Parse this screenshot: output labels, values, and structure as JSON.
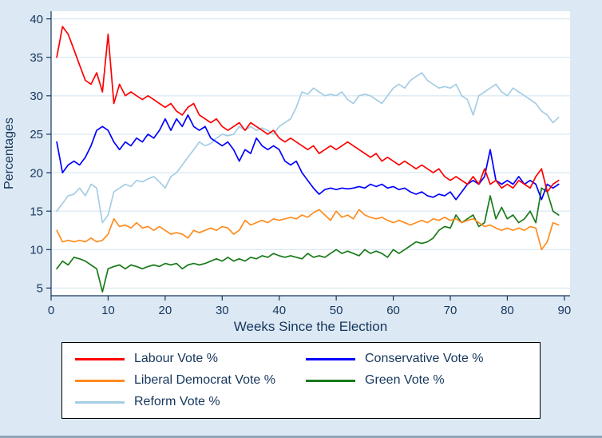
{
  "page": {
    "background_color": "#dce9f4",
    "plot_background_color": "#ffffff",
    "gridline_color": "#cfe3f1",
    "axis_text_color": "#16365c"
  },
  "chart_data": {
    "type": "line",
    "title": "",
    "xlabel": "Weeks Since the Election",
    "ylabel": "Percentages",
    "xlim": [
      0,
      91
    ],
    "ylim": [
      4,
      41
    ],
    "xticks": [
      0,
      10,
      20,
      30,
      40,
      50,
      60,
      70,
      80,
      90
    ],
    "yticks": [
      5,
      10,
      15,
      20,
      25,
      30,
      35,
      40
    ],
    "grid": "horizontal",
    "legend_position": "bottom",
    "x_weeks": [
      1,
      2,
      3,
      4,
      5,
      6,
      7,
      8,
      9,
      10,
      11,
      12,
      13,
      14,
      15,
      16,
      17,
      18,
      19,
      20,
      21,
      22,
      23,
      24,
      25,
      26,
      27,
      28,
      29,
      30,
      31,
      32,
      33,
      34,
      35,
      36,
      37,
      38,
      39,
      40,
      41,
      42,
      43,
      44,
      45,
      46,
      47,
      48,
      49,
      50,
      51,
      52,
      53,
      54,
      55,
      56,
      57,
      58,
      59,
      60,
      61,
      62,
      63,
      64,
      65,
      66,
      67,
      68,
      69,
      70,
      71,
      72,
      73,
      74,
      75,
      76,
      77,
      78,
      79,
      80,
      81,
      82,
      83,
      84,
      85,
      86,
      87,
      88,
      89
    ],
    "series": [
      {
        "name": "Labour Vote %",
        "color": "#fe0000",
        "values": [
          35,
          39,
          38,
          36,
          34,
          32,
          31.5,
          33,
          30.5,
          38,
          29,
          31.5,
          30,
          30.5,
          30,
          29.5,
          30,
          29.5,
          29,
          28.5,
          29,
          28,
          27.5,
          28.5,
          29,
          27.5,
          27,
          26.5,
          27,
          26,
          25.5,
          26,
          26.5,
          25.5,
          26.5,
          26,
          25.5,
          25,
          25.5,
          24.5,
          24,
          24.5,
          24,
          23.5,
          23,
          23.5,
          22.5,
          23,
          23.5,
          23,
          23.5,
          24,
          23.5,
          23,
          22.5,
          22,
          22.5,
          21.5,
          22,
          21.5,
          21,
          21.5,
          21,
          20.5,
          21,
          20.5,
          20,
          20.5,
          19.5,
          19,
          19.5,
          19,
          18.5,
          19.5,
          18.5,
          20.5,
          18.5,
          19,
          18,
          18.5,
          18,
          19,
          18.5,
          18,
          19.5,
          20.5,
          17.5,
          18.5,
          19
        ]
      },
      {
        "name": "Conservative Vote %",
        "color": "#0000fe",
        "values": [
          24,
          20,
          21,
          21.5,
          21,
          22,
          23.5,
          25.5,
          26,
          25.5,
          24,
          23,
          24,
          23.5,
          24.5,
          24,
          25,
          24.5,
          25.5,
          27,
          25.5,
          27,
          26,
          27.5,
          26,
          25.5,
          26,
          24.5,
          24,
          23.5,
          24,
          23,
          21.5,
          23,
          22.5,
          24.5,
          23.5,
          23,
          23.5,
          23,
          21.5,
          21,
          21.5,
          20,
          19,
          18,
          17.2,
          17.8,
          18,
          17.8,
          18,
          17.9,
          18,
          18.2,
          18,
          18.5,
          18.2,
          18.5,
          18,
          18.2,
          17.8,
          18,
          17.5,
          17.2,
          17.5,
          17,
          16.8,
          17.2,
          17,
          17.5,
          16.5,
          17.5,
          18.5,
          19,
          18.5,
          19.5,
          23,
          19,
          18.5,
          19,
          18.5,
          19.5,
          18.5,
          19,
          18.5,
          16.5,
          18.5,
          18,
          18.5
        ]
      },
      {
        "name": "Liberal Democrat Vote %",
        "color": "#ff8c1e",
        "values": [
          12.5,
          11,
          11.2,
          11,
          11.2,
          11,
          11.5,
          11,
          11.2,
          12,
          14,
          13,
          13.2,
          12.8,
          13.5,
          12.8,
          13,
          12.5,
          13,
          12.5,
          12,
          12.2,
          12,
          11.5,
          12.5,
          12.2,
          12.5,
          12.8,
          12.5,
          13,
          12.8,
          12,
          12.5,
          13.8,
          13.2,
          13.5,
          13.8,
          13.5,
          14,
          13.8,
          14,
          14.2,
          14,
          14.5,
          14.2,
          14.8,
          15.2,
          14.5,
          13.8,
          15,
          14.2,
          14.5,
          14,
          15.2,
          14.5,
          14.2,
          14,
          14.2,
          13.8,
          13.5,
          13.8,
          13.5,
          13.2,
          13.5,
          13.8,
          13.5,
          14,
          13.8,
          14.2,
          13.8,
          14,
          13.5,
          13.8,
          14,
          13.5,
          13,
          13.2,
          12.8,
          12.5,
          12.8,
          12.5,
          12.8,
          12.5,
          13,
          12.8,
          10,
          11,
          13.5,
          13.2
        ]
      },
      {
        "name": "Green Vote %",
        "color": "#1a7a1a",
        "values": [
          7.5,
          8.5,
          8,
          9,
          8.8,
          8.5,
          8,
          7.5,
          4.5,
          7.5,
          7.8,
          8,
          7.5,
          8,
          7.8,
          7.5,
          7.8,
          8,
          7.8,
          8.2,
          8,
          8.2,
          7.5,
          8,
          8.2,
          8,
          8.2,
          8.5,
          8.8,
          8.5,
          9,
          8.5,
          8.8,
          8.5,
          9,
          8.8,
          9.2,
          9,
          9.5,
          9.2,
          9,
          9.2,
          9,
          8.8,
          9.5,
          9,
          9.2,
          9,
          9.5,
          10,
          9.5,
          9.8,
          9.5,
          9.2,
          10,
          9.5,
          9.8,
          9.5,
          9,
          10,
          9.5,
          10,
          10.5,
          11,
          10.8,
          11,
          11.5,
          12.5,
          13,
          12.8,
          14.5,
          13.5,
          14,
          14.5,
          13,
          13.5,
          17,
          14,
          15.5,
          14,
          14.5,
          13.5,
          14,
          15,
          13.5,
          18,
          17.5,
          15,
          14.5
        ]
      },
      {
        "name": "Reform Vote %",
        "color": "#a5cde4",
        "values": [
          15,
          16,
          17,
          17.2,
          18,
          17,
          18.5,
          18,
          13.5,
          14.5,
          17.5,
          18,
          18.5,
          18.2,
          19,
          18.8,
          19.2,
          19.5,
          18.8,
          18,
          19.5,
          20,
          21,
          22,
          23,
          24,
          23.5,
          23.8,
          24.5,
          25,
          24.8,
          25,
          26,
          25.5,
          26,
          25.5,
          25.8,
          25.5,
          25,
          26,
          26.5,
          27,
          28.5,
          30.5,
          30.2,
          31,
          30.5,
          30,
          30.2,
          30,
          30.5,
          29.5,
          29,
          30,
          30.2,
          30,
          29.5,
          29,
          30,
          31,
          31.5,
          31,
          32,
          32.5,
          33,
          32,
          31.5,
          31,
          31.2,
          31,
          31.5,
          30,
          29.5,
          27.5,
          30,
          30.5,
          31,
          31.5,
          30.5,
          30,
          31,
          30.5,
          30,
          29.5,
          29,
          28,
          27.5,
          26.5,
          27.2
        ]
      }
    ]
  },
  "legend": {
    "items": [
      {
        "label": "Labour Vote %"
      },
      {
        "label": "Conservative Vote %"
      },
      {
        "label": "Liberal Democrat Vote %"
      },
      {
        "label": "Green Vote %"
      },
      {
        "label": "Reform Vote %"
      }
    ]
  }
}
